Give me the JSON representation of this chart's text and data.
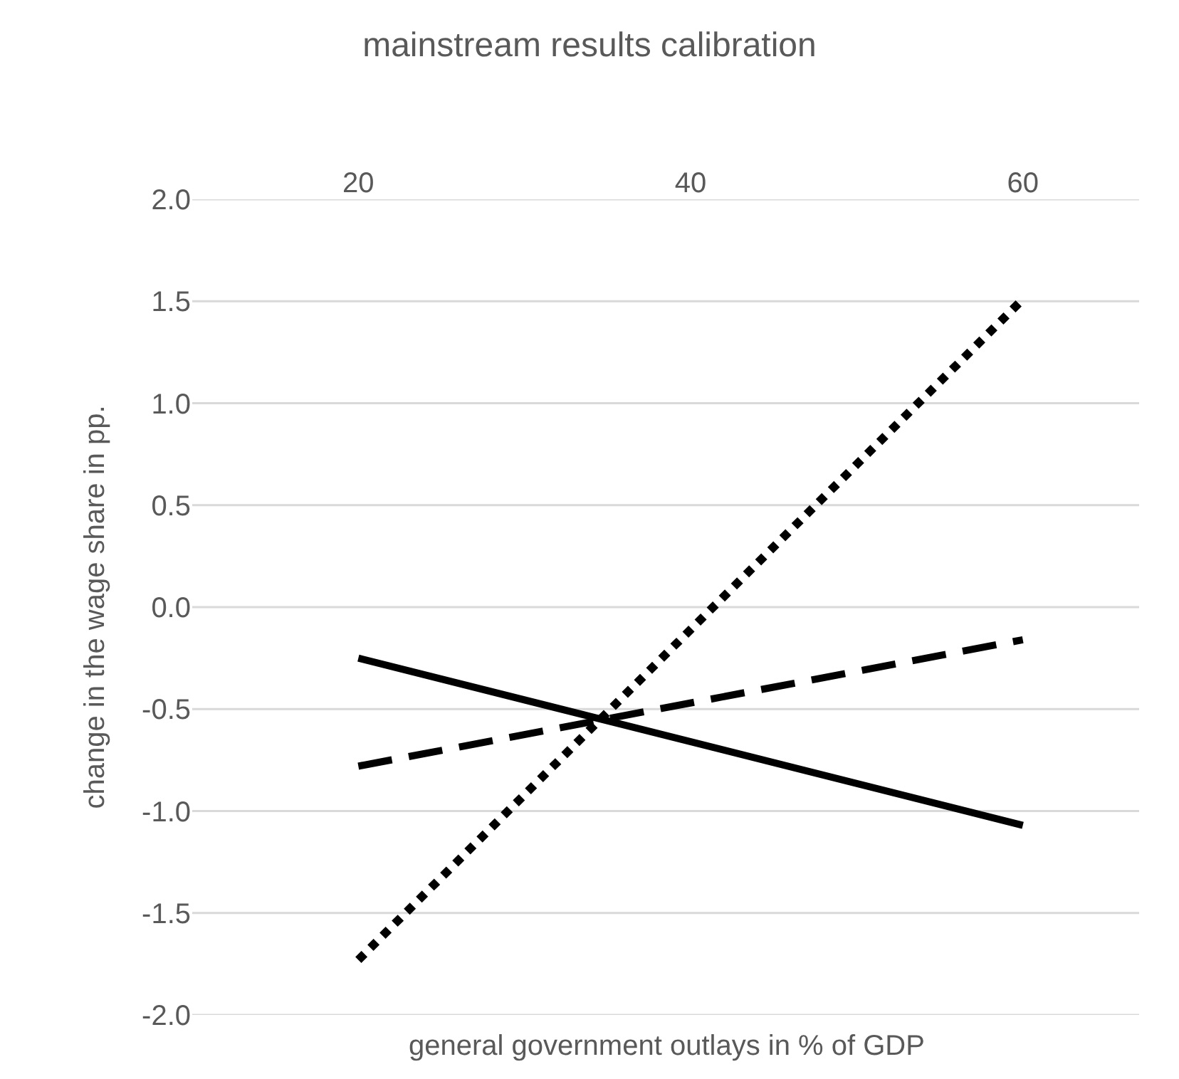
{
  "chart_data": {
    "type": "line",
    "title": "mainstream results calibration",
    "xlabel": "general government outlays in % of GDP",
    "ylabel": "change in the wage share in pp.",
    "xlim": [
      10,
      67
    ],
    "xticks": [
      20,
      40,
      60
    ],
    "ylim": [
      -2.0,
      2.0
    ],
    "yticks": [
      {
        "value": -2,
        "label": "-2.0"
      },
      {
        "value": -1.5,
        "label": "-1.5"
      },
      {
        "value": -1,
        "label": "-1.0"
      },
      {
        "value": -0.5,
        "label": "-0.5"
      },
      {
        "value": 0,
        "label": "0.0"
      },
      {
        "value": 0.5,
        "label": "0.5"
      },
      {
        "value": 1,
        "label": "1.0"
      },
      {
        "value": 1.5,
        "label": "1.5"
      },
      {
        "value": 2,
        "label": "2.0"
      }
    ],
    "x": [
      20,
      60
    ],
    "grid": "y",
    "marker": "none",
    "series": [
      {
        "color": "#000000",
        "line_style": "solid",
        "values": [
          -0.25,
          -1.07
        ]
      },
      {
        "color": "#000000",
        "line_style": "dashed",
        "values": [
          -0.78,
          -0.16
        ]
      },
      {
        "color": "#000000",
        "line_style": "dotted",
        "values": [
          -1.73,
          1.51
        ]
      }
    ]
  }
}
